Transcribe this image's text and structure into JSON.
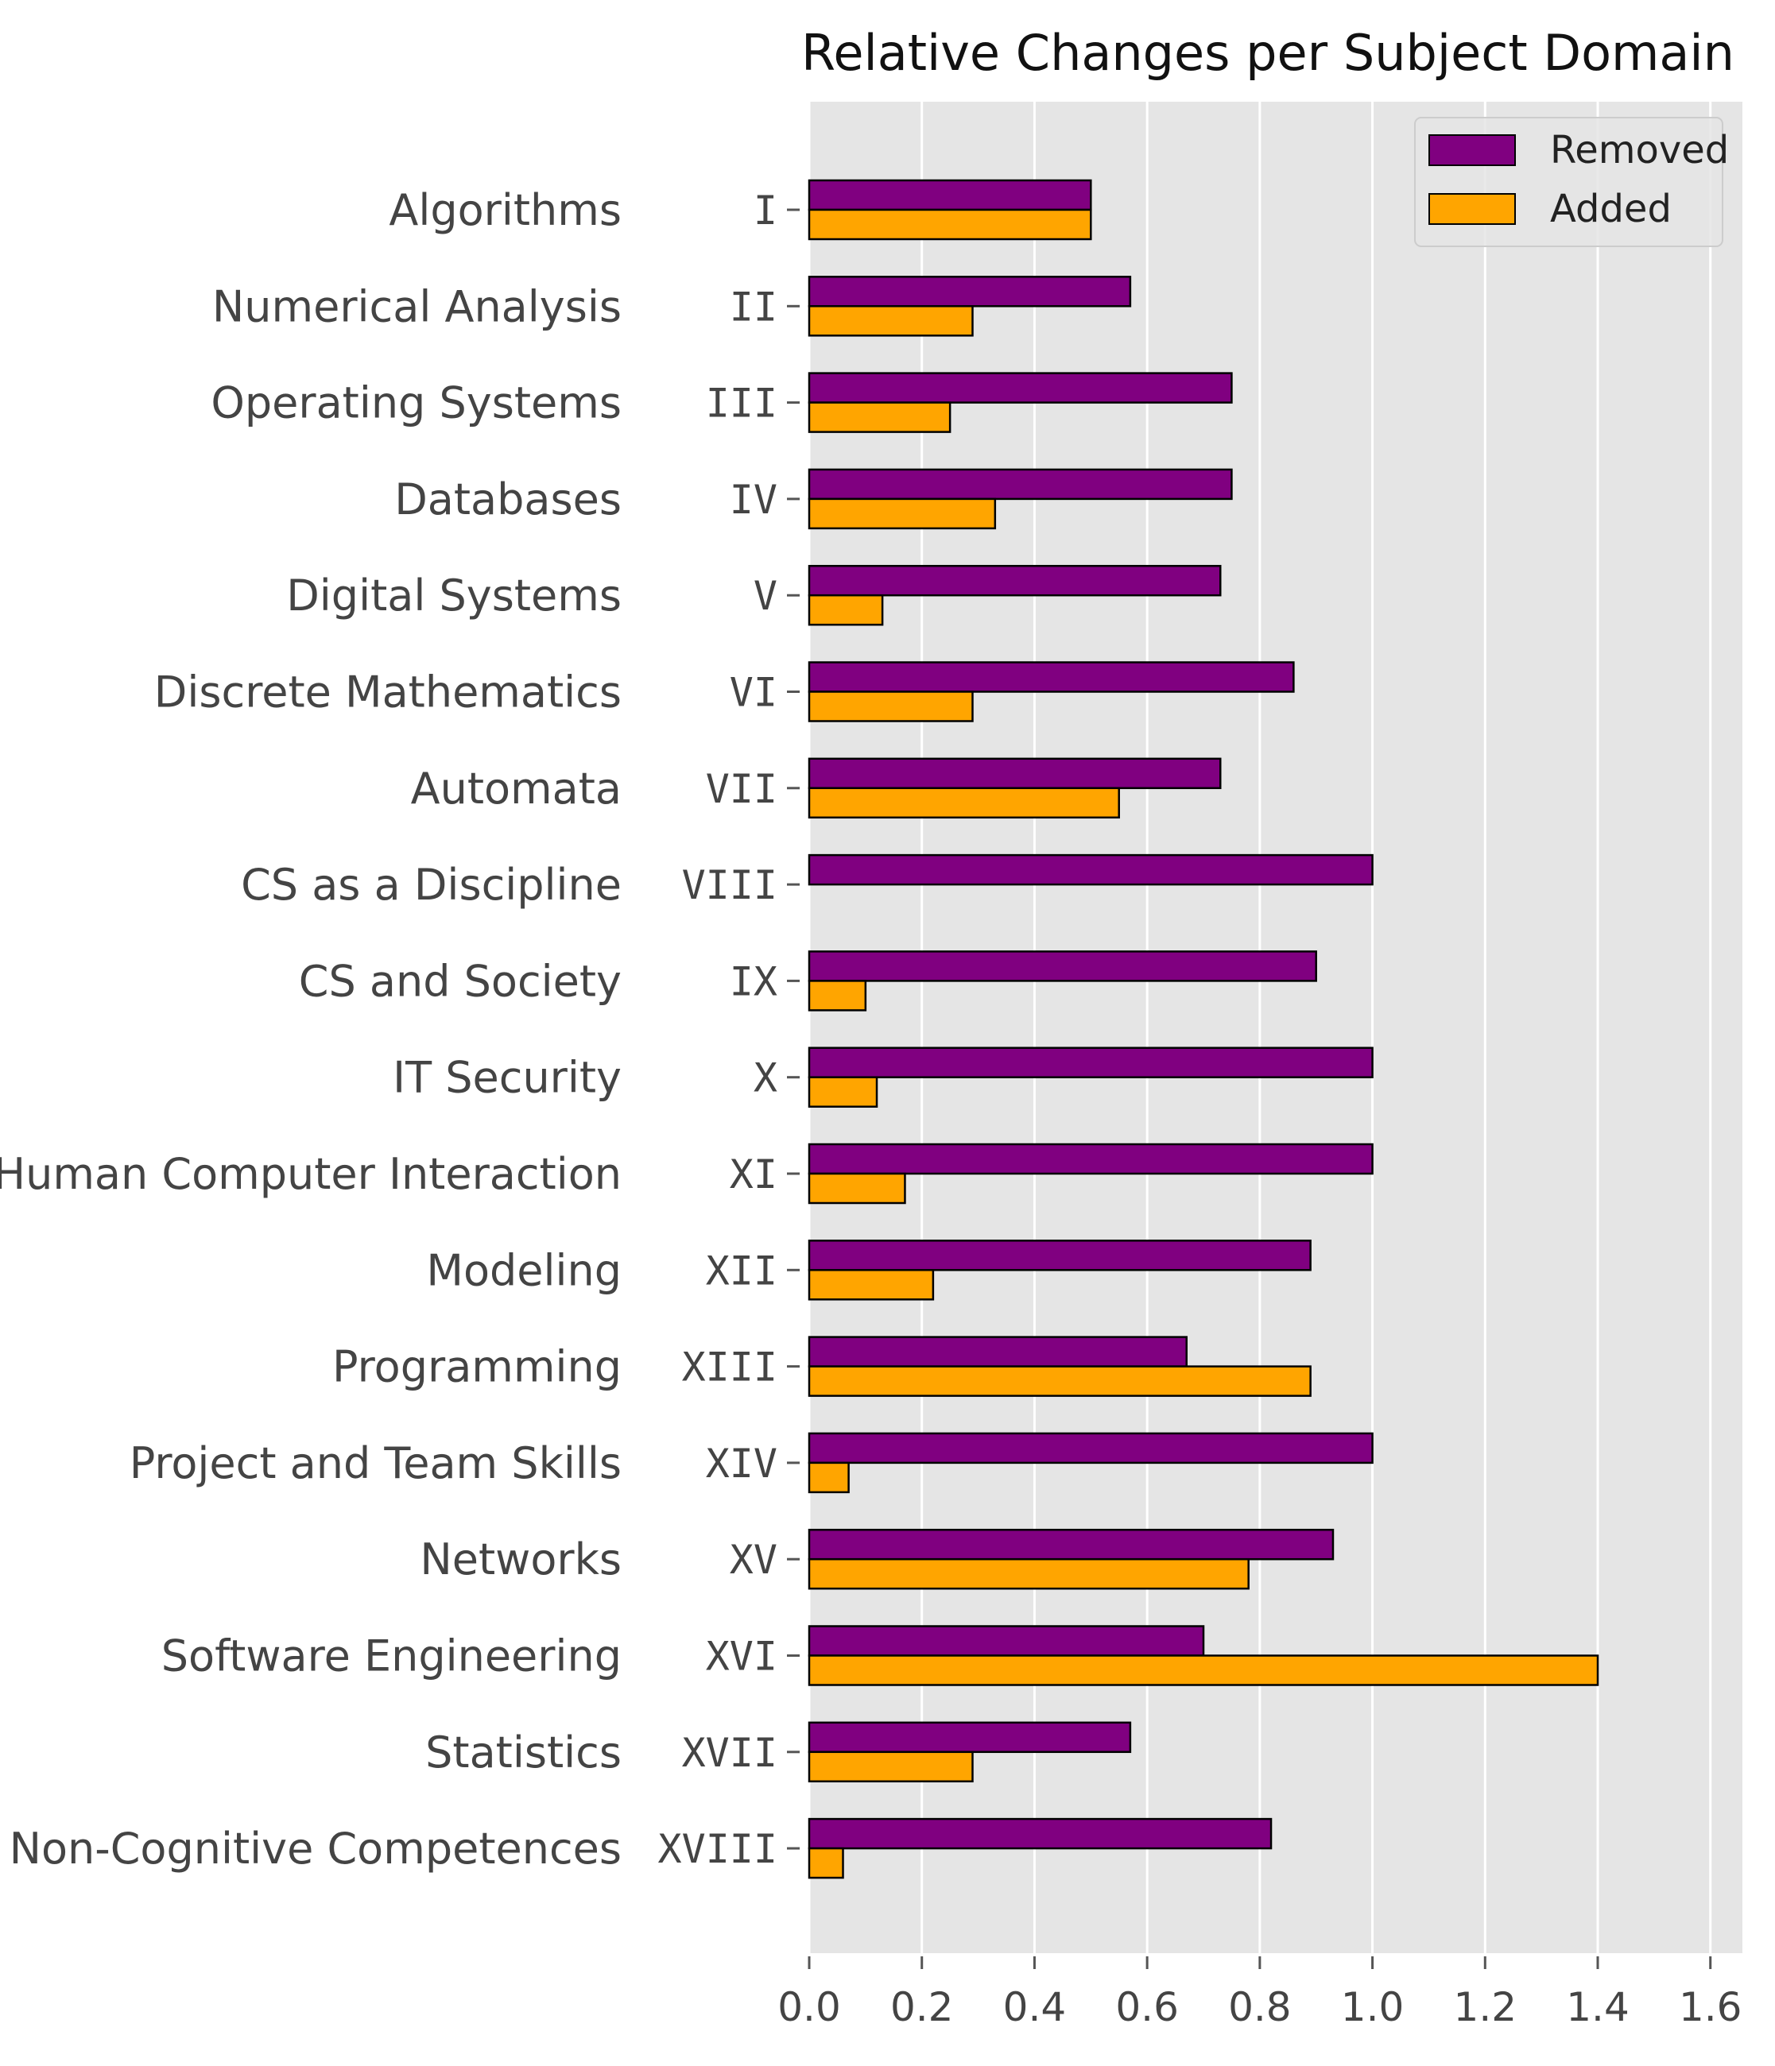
{
  "chart_data": {
    "type": "bar",
    "orientation": "horizontal",
    "title": "Relative Changes per Subject Domain",
    "xlabel": "",
    "ylabel": "",
    "xlim": [
      0,
      1.7
    ],
    "x_ticks": [
      "0.0",
      "0.2",
      "0.4",
      "0.6",
      "0.8",
      "1.0",
      "1.2",
      "1.4",
      "1.6"
    ],
    "grid": true,
    "legend_position": "top-right",
    "categories": [
      "Algorithms",
      "Numerical Analysis",
      "Operating Systems",
      "Databases",
      "Digital Systems",
      "Discrete Mathematics",
      "Automata",
      "CS as a Discipline",
      "CS and Society",
      "IT Security",
      "Human Computer Interaction",
      "Modeling",
      "Programming",
      "Project and Team Skills",
      "Networks",
      "Software Engineering",
      "Statistics",
      "Non-Cognitive Competences"
    ],
    "roman_labels": [
      "I",
      "II",
      "III",
      "IV",
      "V",
      "VI",
      "VII",
      "VIII",
      "IX",
      "X",
      "XI",
      "XII",
      "XIII",
      "XIV",
      "XV",
      "XVI",
      "XVII",
      "XVIII"
    ],
    "series": [
      {
        "name": "Removed",
        "color": "#800080",
        "values": [
          0.5,
          0.57,
          0.75,
          0.75,
          0.73,
          0.86,
          0.73,
          1.0,
          0.9,
          1.0,
          1.0,
          0.89,
          0.67,
          1.0,
          0.93,
          0.7,
          0.57,
          0.82
        ]
      },
      {
        "name": "Added",
        "color": "#FFA500",
        "values": [
          0.5,
          0.29,
          0.25,
          0.33,
          0.13,
          0.29,
          0.55,
          0.0,
          0.1,
          0.12,
          0.17,
          0.22,
          0.89,
          0.07,
          0.78,
          1.4,
          0.29,
          0.06
        ]
      }
    ]
  },
  "colors": {
    "plot_background": "#E5E5E5",
    "grid": "#FFFFFF",
    "bar_edge": "#000000"
  }
}
